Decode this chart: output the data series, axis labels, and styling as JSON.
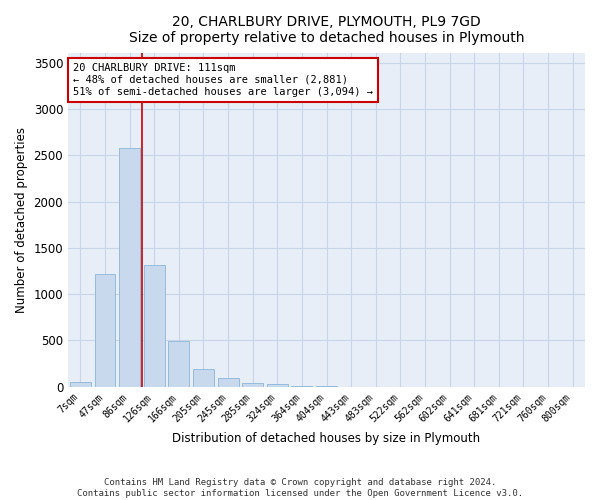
{
  "title": "20, CHARLBURY DRIVE, PLYMOUTH, PL9 7GD",
  "subtitle": "Size of property relative to detached houses in Plymouth",
  "xlabel": "Distribution of detached houses by size in Plymouth",
  "ylabel": "Number of detached properties",
  "bar_color": "#c8d9ee",
  "bar_edge_color": "#7aadd4",
  "grid_color": "#c8d4e8",
  "background_color": "#e8eef8",
  "annotation_box_color": "#cc0000",
  "annotation_text": "20 CHARLBURY DRIVE: 111sqm\n← 48% of detached houses are smaller (2,881)\n51% of semi-detached houses are larger (3,094) →",
  "red_line_color": "#cc0000",
  "categories": [
    "7sqm",
    "47sqm",
    "86sqm",
    "126sqm",
    "166sqm",
    "205sqm",
    "245sqm",
    "285sqm",
    "324sqm",
    "364sqm",
    "404sqm",
    "443sqm",
    "483sqm",
    "522sqm",
    "562sqm",
    "602sqm",
    "641sqm",
    "681sqm",
    "721sqm",
    "760sqm",
    "800sqm"
  ],
  "values": [
    50,
    1220,
    2580,
    1310,
    490,
    190,
    95,
    45,
    25,
    12,
    5,
    2,
    1,
    0,
    0,
    0,
    0,
    0,
    0,
    0,
    0
  ],
  "ylim": [
    0,
    3600
  ],
  "yticks": [
    0,
    500,
    1000,
    1500,
    2000,
    2500,
    3000,
    3500
  ],
  "footer_text": "Contains HM Land Registry data © Crown copyright and database right 2024.\nContains public sector information licensed under the Open Government Licence v3.0.",
  "figsize": [
    6.0,
    5.0
  ],
  "dpi": 100
}
